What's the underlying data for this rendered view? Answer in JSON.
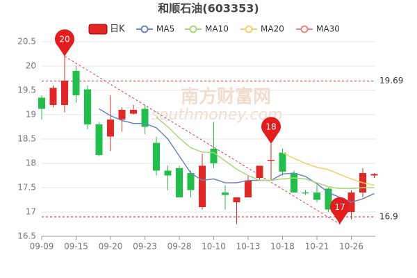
{
  "chart_data": {
    "type": "candlestick",
    "title": "和顺石油(603353)",
    "legend": [
      "日K"
    ],
    "candle_colors": {
      "up": "#e32626",
      "down": "#1ec04a"
    },
    "categories": [
      "09-09",
      null,
      null,
      "09-15",
      null,
      null,
      "09-20",
      null,
      null,
      "09-23",
      null,
      null,
      "09-28",
      null,
      null,
      "10-10",
      null,
      null,
      "10-13",
      null,
      null,
      "10-18",
      null,
      null,
      "10-21",
      null,
      null,
      "10-26",
      null,
      null
    ],
    "open": [
      19.35,
      19.2,
      19.2,
      19.9,
      19.52,
      18.8,
      18.55,
      18.9,
      19.02,
      19.12,
      18.42,
      17.85,
      17.9,
      17.8,
      17.1,
      18.3,
      17.4,
      17.2,
      17.3,
      17.7,
      18.05,
      18.22,
      17.8,
      17.4,
      17.4,
      17.48,
      16.9,
      17.0,
      17.4,
      17.75
    ],
    "close": [
      19.12,
      19.55,
      19.7,
      19.4,
      18.8,
      18.17,
      18.9,
      19.1,
      19.1,
      18.75,
      17.85,
      17.75,
      17.3,
      17.45,
      17.95,
      18.0,
      17.35,
      17.3,
      17.65,
      17.95,
      18.07,
      17.83,
      17.4,
      17.38,
      17.25,
      17.05,
      17.1,
      17.4,
      17.8,
      17.78
    ],
    "low": [
      18.9,
      19.15,
      19.05,
      19.25,
      18.7,
      18.15,
      18.25,
      18.65,
      19.0,
      18.6,
      17.75,
      17.45,
      17.3,
      17.3,
      17.05,
      17.9,
      17.05,
      16.75,
      17.3,
      17.65,
      17.65,
      17.75,
      17.4,
      17.35,
      17.2,
      17.0,
      16.75,
      16.85,
      17.3,
      17.7
    ],
    "high": [
      19.4,
      19.6,
      20.2,
      20.0,
      19.6,
      18.85,
      19.4,
      19.15,
      19.2,
      19.2,
      18.55,
      17.95,
      17.95,
      17.85,
      18.2,
      18.85,
      17.55,
      17.3,
      17.75,
      17.95,
      18.4,
      18.3,
      17.85,
      17.45,
      17.55,
      17.5,
      17.15,
      17.45,
      17.9,
      17.8
    ],
    "series": [
      {
        "name": "MA5",
        "color": "#6a84c4",
        "values": [
          null,
          null,
          null,
          null,
          null,
          19.12,
          18.98,
          18.88,
          18.82,
          18.82,
          18.73,
          18.5,
          18.15,
          17.8,
          17.65,
          17.68,
          17.6,
          17.6,
          17.65,
          17.65,
          17.65,
          17.78,
          17.8,
          17.73,
          17.58,
          17.4,
          17.3,
          17.2,
          17.27,
          17.38
        ]
      },
      {
        "name": "MA10",
        "color": "#a6d97a",
        "values": [
          null,
          null,
          null,
          null,
          null,
          null,
          null,
          null,
          null,
          null,
          18.95,
          18.75,
          18.52,
          18.32,
          18.23,
          18.22,
          18.05,
          17.88,
          17.75,
          17.65,
          17.65,
          17.68,
          17.7,
          17.68,
          17.6,
          17.52,
          17.48,
          17.48,
          17.5,
          17.5
        ]
      },
      {
        "name": "MA20",
        "color": "#f5cf6a",
        "values": [
          null,
          null,
          null,
          null,
          null,
          null,
          null,
          null,
          null,
          null,
          null,
          null,
          null,
          null,
          null,
          null,
          null,
          null,
          null,
          null,
          null,
          18.22,
          18.1,
          18.0,
          17.92,
          17.87,
          17.77,
          17.68,
          17.6,
          17.55
        ]
      },
      {
        "name": "MA30",
        "color": "#f08080",
        "values": [
          null,
          null,
          null,
          null,
          null,
          null,
          null,
          null,
          null,
          null,
          null,
          null,
          null,
          null,
          null,
          null,
          null,
          null,
          null,
          null,
          null,
          null,
          null,
          null,
          null,
          null,
          null,
          null,
          null,
          null
        ]
      }
    ],
    "ylim": [
      16.5,
      20.5
    ],
    "yticks": [
      16.5,
      17,
      17.5,
      18,
      18.5,
      19,
      19.5,
      20,
      20.5
    ],
    "grid": true,
    "ref_lines": [
      19.69,
      16.9
    ],
    "annotations": [
      {
        "label": "20",
        "index": 2,
        "price": 20.2
      },
      {
        "label": "18",
        "index": 20,
        "price": 18.4
      },
      {
        "label": "17",
        "index": 26,
        "price": 16.75
      }
    ],
    "trend_line": {
      "start_index": 2,
      "start": 20.2,
      "end_index": 26,
      "end": 16.75
    },
    "watermark": [
      "南方财富网",
      "southmoney.com"
    ]
  }
}
